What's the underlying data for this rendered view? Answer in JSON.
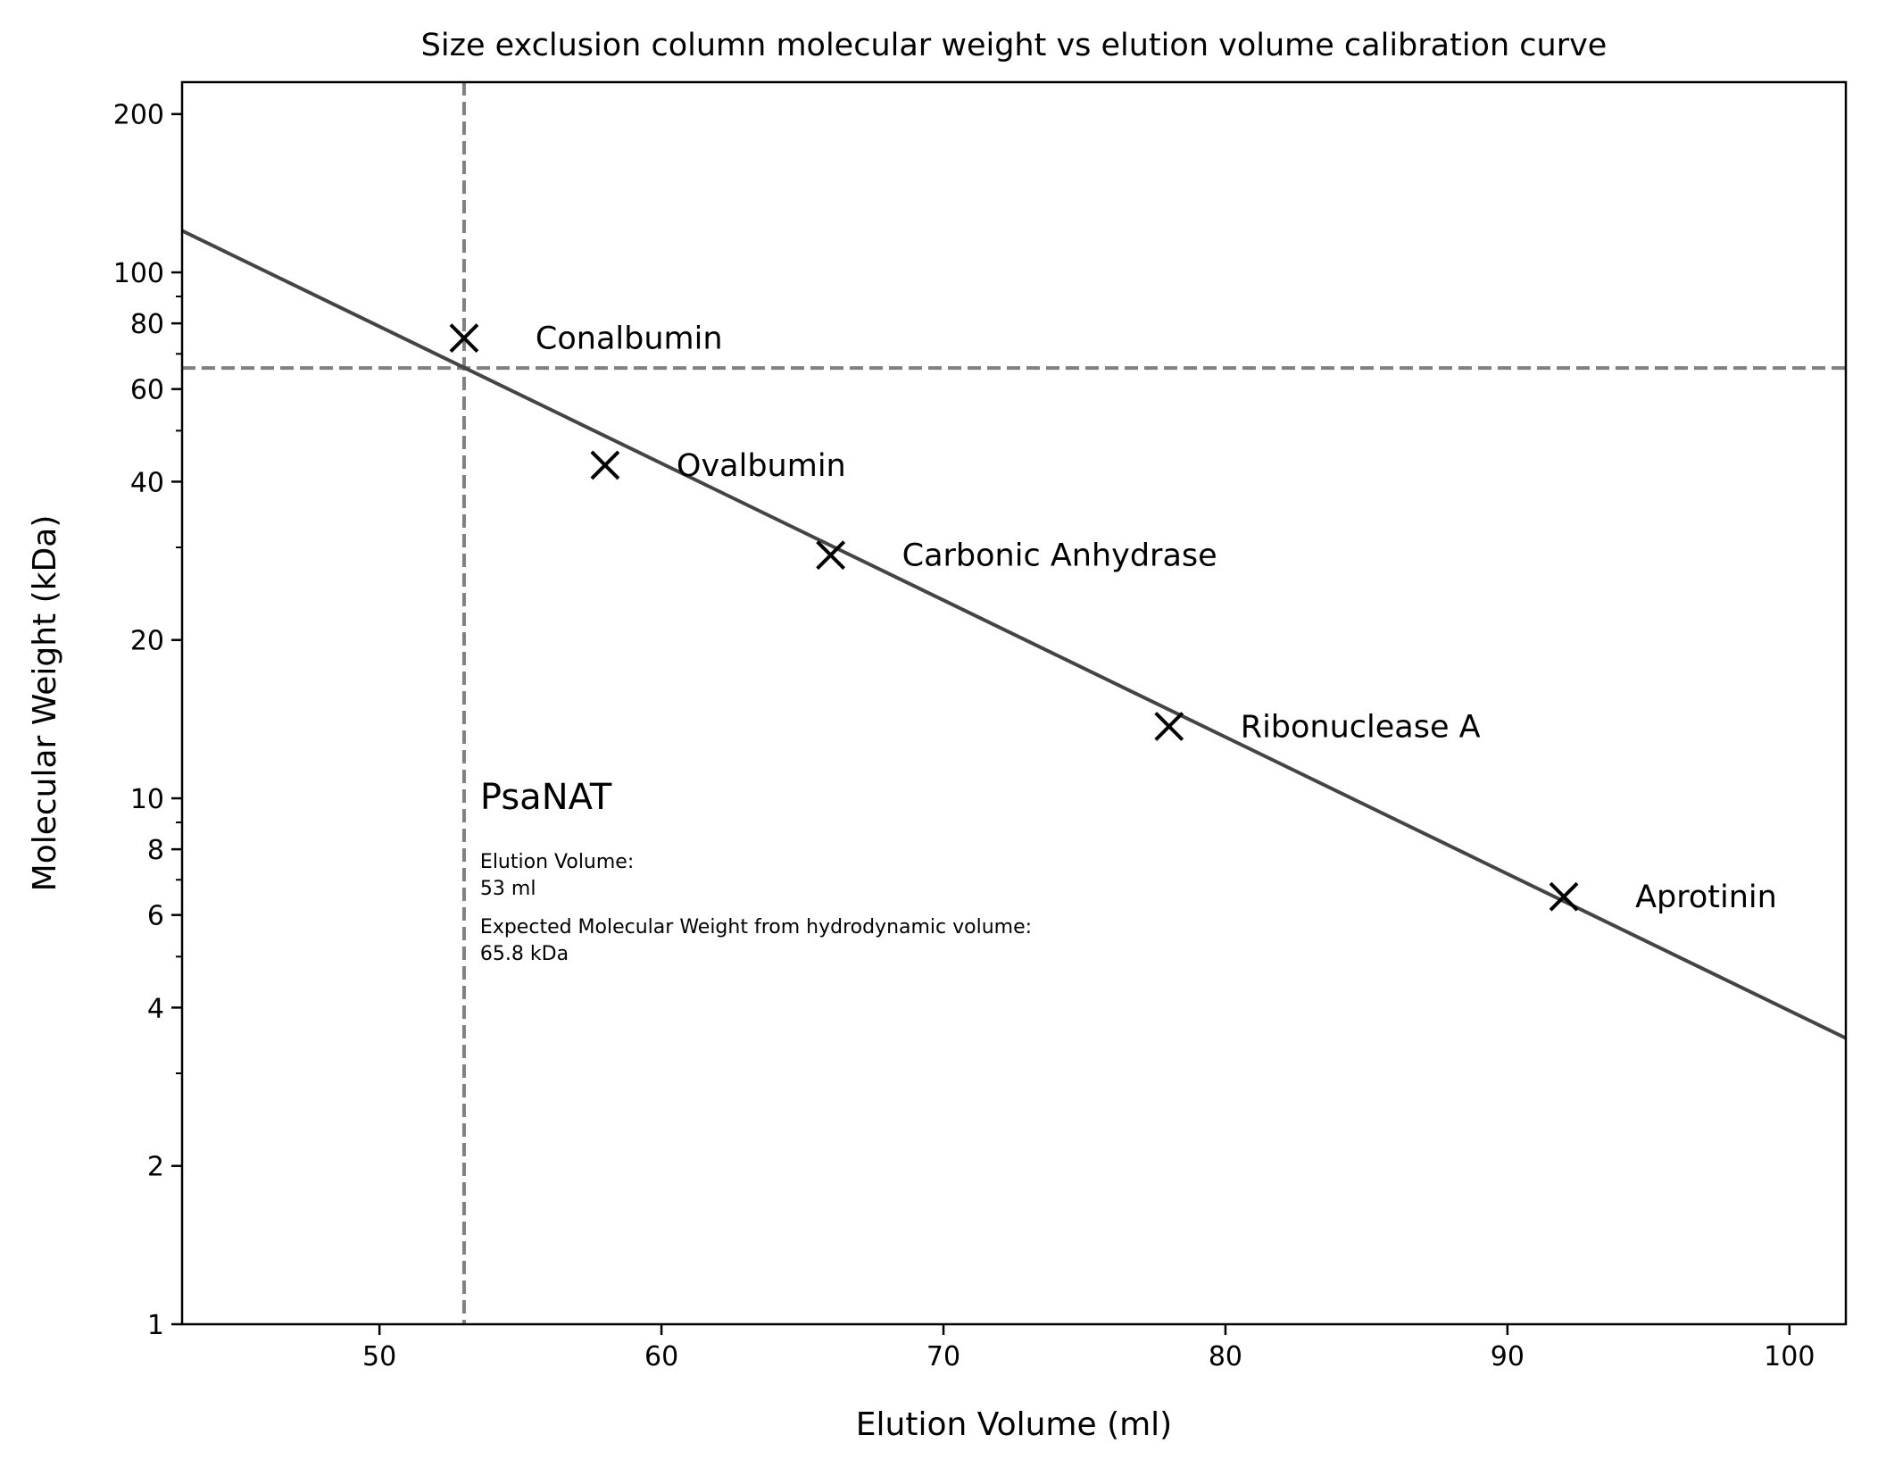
{
  "chart_data": {
    "type": "scatter",
    "title": "Size exclusion column molecular weight vs elution volume calibration curve",
    "xlabel": "Elution Volume (ml)",
    "ylabel": "Molecular Weight (kDa)",
    "xlim": [
      43,
      102
    ],
    "ylim": [
      1,
      230
    ],
    "y_scale": "log",
    "grid": false,
    "x_ticks": [
      50,
      60,
      70,
      80,
      90,
      100
    ],
    "y_ticks": [
      1,
      2,
      4,
      6,
      8,
      10,
      20,
      40,
      60,
      80,
      100,
      200
    ],
    "y_minor_ticks": [
      3,
      5,
      7,
      9,
      30,
      50,
      70,
      90
    ],
    "series": [
      {
        "marker": "x",
        "points": [
          {
            "x": 53,
            "y": 75,
            "label": "Conalbumin"
          },
          {
            "x": 58,
            "y": 43,
            "label": "Ovalbumin"
          },
          {
            "x": 66,
            "y": 29,
            "label": "Carbonic Anhydrase"
          },
          {
            "x": 78,
            "y": 13.7,
            "label": "Ribonuclease A"
          },
          {
            "x": 92,
            "y": 6.5,
            "label": "Aprotinin"
          }
        ]
      }
    ],
    "fit_line": {
      "x": [
        43,
        102
      ],
      "y": [
        120,
        3.5
      ]
    },
    "reference_lines": {
      "vertical_x": 53,
      "horizontal_y": 65.8
    },
    "annotation": {
      "title": "PsaNAT",
      "lines": [
        "Elution Volume:",
        "53 ml",
        "Expected Molecular Weight from hydrodynamic volume:",
        "65.8 kDa"
      ]
    },
    "colors": {
      "markers": "#000000",
      "fit_line": "#444444",
      "reference_lines": "#808080"
    }
  }
}
